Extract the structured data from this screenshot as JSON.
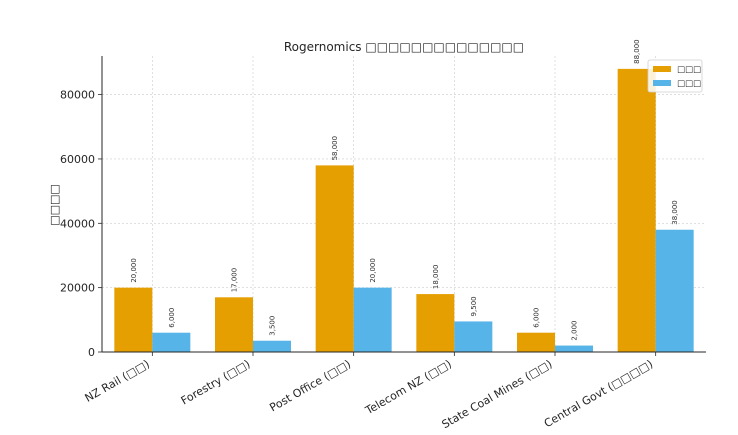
{
  "chart_data": {
    "type": "bar",
    "title": "Rogernomics □□□□□□□□□□□□□□",
    "xlabel": "",
    "ylabel": "□□□□",
    "categories": [
      "NZ Rail (□□)",
      "Forestry (□□)",
      "Post Office (□□)",
      "Telecom NZ (□□)",
      "State Coal Mines (□□)",
      "Central Govt (□□□□)"
    ],
    "series": [
      {
        "name": "□□□",
        "color": "#E69F00",
        "values": [
          20000,
          17000,
          58000,
          18000,
          6000,
          88000
        ]
      },
      {
        "name": "□□□",
        "color": "#56B4E9",
        "values": [
          6000,
          3500,
          20000,
          9500,
          2000,
          38000
        ]
      }
    ],
    "value_labels": [
      [
        "20,000",
        "17,000",
        "58,000",
        "18,000",
        "6,000",
        "88,000"
      ],
      [
        "6,000",
        "3,500",
        "20,000",
        "9,500",
        "2,000",
        "38,000"
      ]
    ],
    "ylim": [
      0,
      92000
    ],
    "yticks": [
      0,
      20000,
      40000,
      60000,
      80000
    ],
    "ytick_labels": [
      "0",
      "20000",
      "40000",
      "60000",
      "80000"
    ],
    "grid": true,
    "legend_position": "top-right"
  }
}
